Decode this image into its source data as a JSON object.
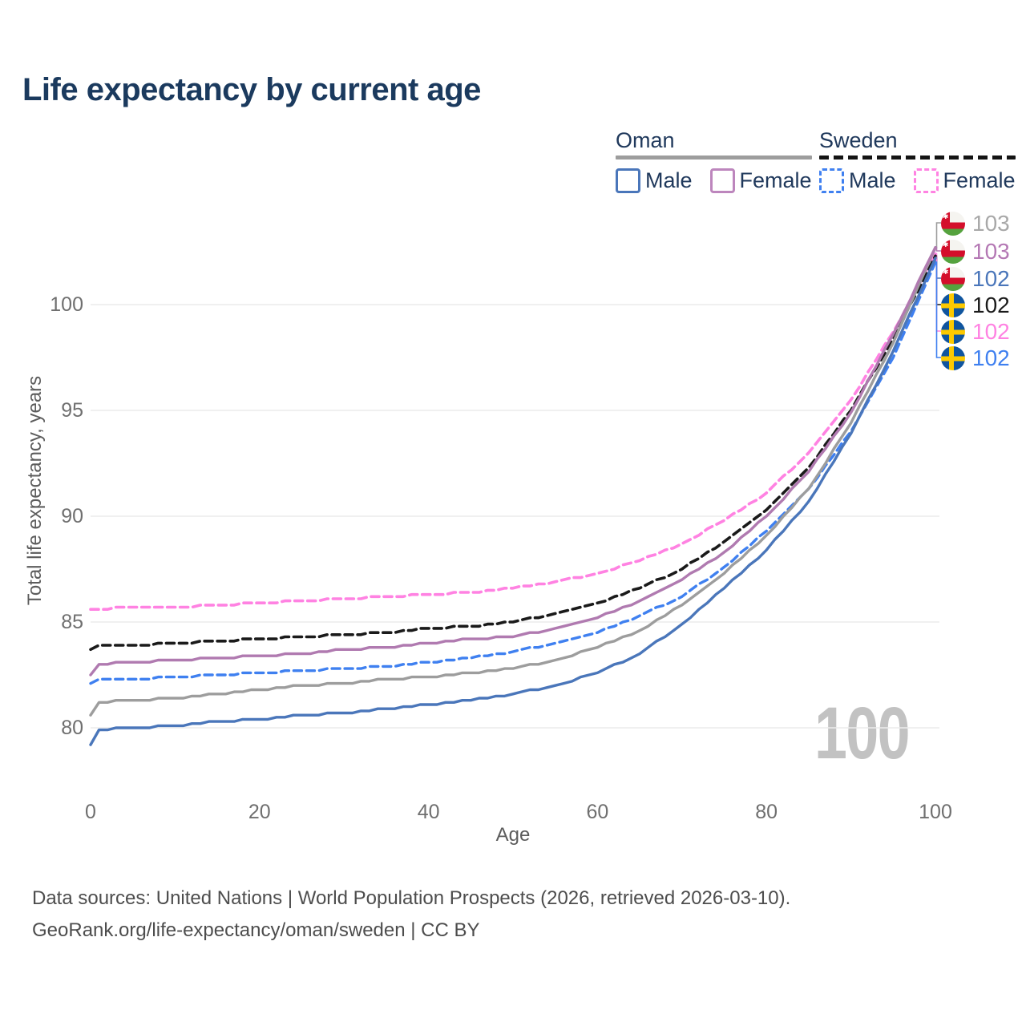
{
  "header": {
    "title": "Life expectancy by current age"
  },
  "legend": {
    "groups": [
      {
        "name": "Oman",
        "line_style": "solid",
        "line_color": "#9d9d9d",
        "items": [
          {
            "label": "Male",
            "color": "#4a76ba",
            "dash": false
          },
          {
            "label": "Female",
            "color": "#bd86bd",
            "dash": false
          }
        ]
      },
      {
        "name": "Sweden",
        "line_style": "dashed",
        "line_color": "#141414",
        "items": [
          {
            "label": "Male",
            "color": "#3f80f0",
            "dash": true
          },
          {
            "label": "Female",
            "color": "#ff82e2",
            "dash": true
          }
        ]
      }
    ]
  },
  "chart_data": {
    "type": "line",
    "title": "Life expectancy by current age",
    "xlabel": "Age",
    "ylabel": "Total life expectancy, years",
    "x_ticks": [
      0,
      20,
      40,
      60,
      80,
      100
    ],
    "y_ticks": [
      80,
      85,
      90,
      95,
      100
    ],
    "xlim": [
      0,
      100
    ],
    "ylim": [
      77.5,
      103.5
    ],
    "grid": "horizontal-only",
    "legend_position": "top-right",
    "watermark": "100",
    "anchor_ages": [
      0,
      1,
      5,
      10,
      15,
      20,
      25,
      30,
      35,
      40,
      45,
      50,
      55,
      60,
      65,
      70,
      75,
      80,
      85,
      90,
      95,
      100
    ],
    "series": [
      {
        "id": "oman_total",
        "name": "Oman (both sexes)",
        "country": "Oman",
        "sex": "All",
        "color": "#9d9d9d",
        "dash": "solid",
        "values": [
          80.6,
          81.2,
          81.3,
          81.4,
          81.6,
          81.8,
          82.0,
          82.1,
          82.3,
          82.4,
          82.6,
          82.8,
          83.2,
          83.8,
          84.6,
          85.8,
          87.3,
          89.1,
          91.3,
          94.4,
          98.2,
          102.7
        ]
      },
      {
        "id": "oman_male",
        "name": "Oman Male",
        "country": "Oman",
        "sex": "Male",
        "color": "#4a76ba",
        "dash": "solid",
        "values": [
          79.2,
          79.9,
          80.0,
          80.1,
          80.3,
          80.4,
          80.6,
          80.7,
          80.9,
          81.1,
          81.3,
          81.6,
          82.0,
          82.6,
          83.5,
          84.9,
          86.6,
          88.4,
          90.7,
          93.9,
          97.8,
          102.2
        ]
      },
      {
        "id": "oman_female",
        "name": "Oman Female",
        "country": "Oman",
        "sex": "Female",
        "color": "#b07ab0",
        "dash": "solid",
        "values": [
          82.5,
          83.0,
          83.1,
          83.2,
          83.3,
          83.4,
          83.5,
          83.7,
          83.8,
          84.0,
          84.2,
          84.3,
          84.7,
          85.2,
          86.0,
          87.0,
          88.3,
          90.0,
          92.1,
          94.9,
          98.6,
          102.7
        ]
      },
      {
        "id": "sweden_total",
        "name": "Sweden (both sexes)",
        "country": "Sweden",
        "sex": "All",
        "color": "#1a1a1a",
        "dash": "dashed",
        "values": [
          83.7,
          83.9,
          83.9,
          84.0,
          84.1,
          84.2,
          84.3,
          84.4,
          84.5,
          84.7,
          84.8,
          85.0,
          85.4,
          85.9,
          86.6,
          87.5,
          88.8,
          90.3,
          92.3,
          95.0,
          98.4,
          102.3
        ]
      },
      {
        "id": "sweden_male",
        "name": "Sweden Male",
        "country": "Sweden",
        "sex": "Male",
        "color": "#3f80f0",
        "dash": "dashed",
        "values": [
          82.1,
          82.3,
          82.3,
          82.4,
          82.5,
          82.6,
          82.7,
          82.8,
          82.9,
          83.1,
          83.3,
          83.6,
          84.0,
          84.5,
          85.3,
          86.2,
          87.6,
          89.3,
          91.3,
          94.0,
          97.5,
          102.0
        ]
      },
      {
        "id": "sweden_female",
        "name": "Sweden Female",
        "country": "Sweden",
        "sex": "Female",
        "color": "#ff82e2",
        "dash": "dashed",
        "values": [
          85.6,
          85.6,
          85.7,
          85.7,
          85.8,
          85.9,
          86.0,
          86.1,
          86.2,
          86.3,
          86.4,
          86.6,
          86.9,
          87.3,
          87.9,
          88.7,
          89.8,
          91.1,
          93.0,
          95.5,
          98.7,
          102.4
        ]
      }
    ]
  },
  "end_labels": [
    {
      "value": "103",
      "series": "oman_total",
      "flag": "oman",
      "color": "#a8a8a8"
    },
    {
      "value": "103",
      "series": "oman_female",
      "flag": "oman",
      "color": "#b478b4"
    },
    {
      "value": "102",
      "series": "oman_male",
      "flag": "oman",
      "color": "#4a76ba"
    },
    {
      "value": "102",
      "series": "sweden_total",
      "flag": "sweden",
      "color": "#1a1a1a"
    },
    {
      "value": "102",
      "series": "sweden_female",
      "flag": "sweden",
      "color": "#ff82e2"
    },
    {
      "value": "102",
      "series": "sweden_male",
      "flag": "sweden",
      "color": "#3f80f0"
    }
  ],
  "footer": {
    "line1": "Data sources: United Nations | World Population Prospects (2026, retrieved 2026-03-10).",
    "line2": "GeoRank.org/life-expectancy/oman/sweden | CC BY"
  }
}
